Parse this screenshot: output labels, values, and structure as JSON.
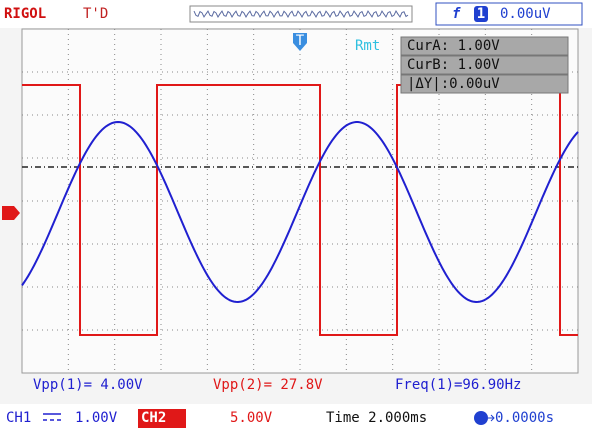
{
  "header": {
    "brand": "RIGOL",
    "status": "T'D",
    "trigger_source": "1",
    "trigger_level": "0.00uV",
    "trigger_marker": "T"
  },
  "cursor": {
    "mode": "Rmt",
    "cur_a": "CurA: 1.00V",
    "cur_b": "CurB: 1.00V",
    "delta_y": "|ΔY|:0.00uV"
  },
  "measurements": [
    "Vpp(1)= 4.00V",
    "Vpp(2)= 27.8V",
    "Freq(1)=96.90Hz"
  ],
  "footer": {
    "ch1_label": "CH1",
    "ch1_scale": "1.00V",
    "ch2_label": "CH2",
    "ch2_scale": "5.00V",
    "timebase": "Time 2.000ms",
    "offset": "0.0000s"
  }
}
